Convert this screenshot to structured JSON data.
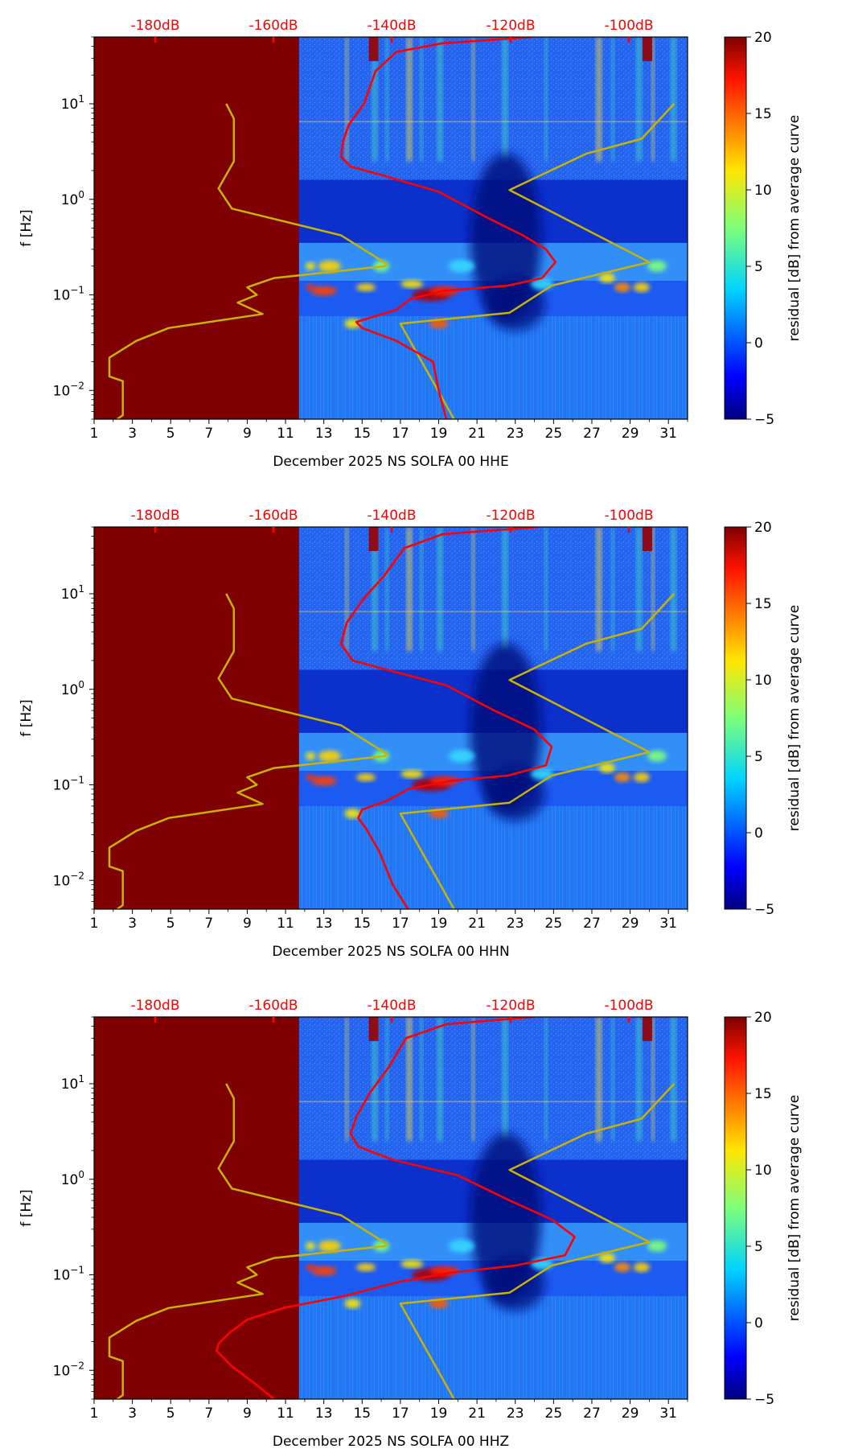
{
  "chart_data": [
    {
      "type": "heatmap",
      "xlabel": "December 2025 NS SOLFA 00 HHE",
      "ylabel": "f [Hz]",
      "colorbar_label": "residual [dB] from average curve",
      "colorbar_ticks": [
        "20",
        "15",
        "10",
        "5",
        "0",
        "−5"
      ],
      "colorbar_range": [
        -5,
        20
      ],
      "x_tick_labels": [
        "1",
        "3",
        "5",
        "7",
        "9",
        "11",
        "13",
        "15",
        "17",
        "19",
        "21",
        "23",
        "25",
        "27",
        "29",
        "31"
      ],
      "y_tick_labels": [
        {
          "base": "10",
          "exp": "1"
        },
        {
          "base": "10",
          "exp": "0"
        },
        {
          "base": "10",
          "exp": "−1"
        },
        {
          "base": "10",
          "exp": "−2"
        }
      ],
      "y_range_hz": [
        0.005,
        50
      ],
      "x_range_days": [
        1,
        32
      ],
      "top_axis_labels": [
        "-180dB",
        "-160dB",
        "-140dB",
        "-120dB",
        "-100dB"
      ],
      "no_data_until_day": 11.7,
      "reference_curve_color": "#c8b400",
      "mean_curve_color": "#ff0000",
      "reference_curves": [
        {
          "points": [
            [
              7.9,
              10
            ],
            [
              8.3,
              7
            ],
            [
              8.3,
              2.5
            ],
            [
              7.5,
              1.3
            ],
            [
              8.2,
              0.8
            ],
            [
              13.9,
              0.42
            ],
            [
              16.3,
              0.21
            ],
            [
              16.2,
              0.2
            ],
            [
              10.4,
              0.15
            ],
            [
              9.0,
              0.12
            ],
            [
              9.5,
              0.1
            ],
            [
              8.5,
              0.083
            ],
            [
              9.8,
              0.063
            ],
            [
              4.9,
              0.045
            ],
            [
              3.2,
              0.033
            ],
            [
              1.8,
              0.022
            ],
            [
              1.8,
              0.014
            ],
            [
              2.5,
              0.0125
            ],
            [
              2.5,
              0.0055
            ],
            [
              2.2,
              0.005
            ]
          ]
        },
        {
          "points": [
            [
              31.3,
              10
            ],
            [
              29.6,
              4.3
            ],
            [
              26.7,
              3.0
            ],
            [
              22.7,
              1.25
            ],
            [
              30.0,
              0.22
            ],
            [
              24.9,
              0.125
            ],
            [
              22.7,
              0.065
            ],
            [
              17.0,
              0.05
            ],
            [
              19.8,
              0.005
            ]
          ]
        }
      ],
      "mean_curve": [
        [
          23.9,
          50
        ],
        [
          19.2,
          43
        ],
        [
          16.8,
          35
        ],
        [
          15.7,
          22
        ],
        [
          15.1,
          10
        ],
        [
          14.3,
          6
        ],
        [
          14.0,
          4
        ],
        [
          13.9,
          2.8
        ],
        [
          14.4,
          2.2
        ],
        [
          16.0,
          1.8
        ],
        [
          19.0,
          1.2
        ],
        [
          21.5,
          0.65
        ],
        [
          23.4,
          0.42
        ],
        [
          24.6,
          0.3
        ],
        [
          25.1,
          0.22
        ],
        [
          24.4,
          0.15
        ],
        [
          22.6,
          0.125
        ],
        [
          19.2,
          0.11
        ],
        [
          17.5,
          0.09
        ],
        [
          16.8,
          0.07
        ],
        [
          14.7,
          0.052
        ],
        [
          15.0,
          0.045
        ],
        [
          16.8,
          0.033
        ],
        [
          18.7,
          0.02
        ],
        [
          19.0,
          0.01
        ],
        [
          19.4,
          0.005
        ]
      ]
    },
    {
      "type": "heatmap",
      "xlabel": "December 2025 NS SOLFA 00 HHN",
      "ylabel": "f [Hz]",
      "colorbar_label": "residual [dB] from average curve",
      "colorbar_ticks": [
        "20",
        "15",
        "10",
        "5",
        "0",
        "−5"
      ],
      "colorbar_range": [
        -5,
        20
      ],
      "x_tick_labels": [
        "1",
        "3",
        "5",
        "7",
        "9",
        "11",
        "13",
        "15",
        "17",
        "19",
        "21",
        "23",
        "25",
        "27",
        "29",
        "31"
      ],
      "y_tick_labels": [
        {
          "base": "10",
          "exp": "1"
        },
        {
          "base": "10",
          "exp": "0"
        },
        {
          "base": "10",
          "exp": "−1"
        },
        {
          "base": "10",
          "exp": "−2"
        }
      ],
      "y_range_hz": [
        0.005,
        50
      ],
      "x_range_days": [
        1,
        32
      ],
      "top_axis_labels": [
        "-180dB",
        "-160dB",
        "-140dB",
        "-120dB",
        "-100dB"
      ],
      "no_data_until_day": 11.7,
      "reference_curve_color": "#c8b400",
      "mean_curve_color": "#ff0000",
      "reference_curves": [
        {
          "points": [
            [
              7.9,
              10
            ],
            [
              8.3,
              7
            ],
            [
              8.3,
              2.5
            ],
            [
              7.5,
              1.3
            ],
            [
              8.2,
              0.8
            ],
            [
              13.9,
              0.42
            ],
            [
              16.3,
              0.21
            ],
            [
              16.2,
              0.2
            ],
            [
              10.4,
              0.15
            ],
            [
              9.0,
              0.12
            ],
            [
              9.5,
              0.1
            ],
            [
              8.5,
              0.083
            ],
            [
              9.8,
              0.063
            ],
            [
              4.9,
              0.045
            ],
            [
              3.2,
              0.033
            ],
            [
              1.8,
              0.022
            ],
            [
              1.8,
              0.014
            ],
            [
              2.5,
              0.0125
            ],
            [
              2.5,
              0.0055
            ],
            [
              2.2,
              0.005
            ]
          ]
        },
        {
          "points": [
            [
              31.3,
              10
            ],
            [
              29.6,
              4.3
            ],
            [
              26.7,
              3.0
            ],
            [
              22.7,
              1.25
            ],
            [
              30.0,
              0.22
            ],
            [
              24.9,
              0.125
            ],
            [
              22.7,
              0.065
            ],
            [
              17.0,
              0.05
            ],
            [
              19.8,
              0.005
            ]
          ]
        }
      ],
      "mean_curve": [
        [
          24.2,
          50
        ],
        [
          19.2,
          42
        ],
        [
          17.2,
          30
        ],
        [
          16.1,
          15
        ],
        [
          15.1,
          9
        ],
        [
          14.2,
          5
        ],
        [
          13.9,
          3.0
        ],
        [
          14.5,
          2.0
        ],
        [
          16.3,
          1.6
        ],
        [
          19.4,
          1.1
        ],
        [
          21.9,
          0.6
        ],
        [
          24.0,
          0.38
        ],
        [
          24.9,
          0.25
        ],
        [
          24.6,
          0.16
        ],
        [
          22.6,
          0.125
        ],
        [
          19.6,
          0.11
        ],
        [
          17.4,
          0.09
        ],
        [
          16.3,
          0.068
        ],
        [
          15.0,
          0.055
        ],
        [
          14.8,
          0.045
        ],
        [
          15.2,
          0.035
        ],
        [
          15.9,
          0.02
        ],
        [
          16.6,
          0.009
        ],
        [
          17.4,
          0.005
        ]
      ]
    },
    {
      "type": "heatmap",
      "xlabel": "December 2025 NS SOLFA 00 HHZ",
      "ylabel": "f [Hz]",
      "colorbar_label": "residual [dB] from average curve",
      "colorbar_ticks": [
        "20",
        "15",
        "10",
        "5",
        "0",
        "−5"
      ],
      "colorbar_range": [
        -5,
        20
      ],
      "x_tick_labels": [
        "1",
        "3",
        "5",
        "7",
        "9",
        "11",
        "13",
        "15",
        "17",
        "19",
        "21",
        "23",
        "25",
        "27",
        "29",
        "31"
      ],
      "y_tick_labels": [
        {
          "base": "10",
          "exp": "1"
        },
        {
          "base": "10",
          "exp": "0"
        },
        {
          "base": "10",
          "exp": "−1"
        },
        {
          "base": "10",
          "exp": "−2"
        }
      ],
      "y_range_hz": [
        0.005,
        50
      ],
      "x_range_days": [
        1,
        32
      ],
      "top_axis_labels": [
        "-180dB",
        "-160dB",
        "-140dB",
        "-120dB",
        "-100dB"
      ],
      "no_data_until_day": 11.7,
      "reference_curve_color": "#c8b400",
      "mean_curve_color": "#ff0000",
      "reference_curves": [
        {
          "points": [
            [
              7.9,
              10
            ],
            [
              8.3,
              7
            ],
            [
              8.3,
              2.5
            ],
            [
              7.5,
              1.3
            ],
            [
              8.2,
              0.8
            ],
            [
              13.9,
              0.42
            ],
            [
              16.3,
              0.21
            ],
            [
              16.2,
              0.2
            ],
            [
              10.4,
              0.15
            ],
            [
              9.0,
              0.12
            ],
            [
              9.5,
              0.1
            ],
            [
              8.5,
              0.083
            ],
            [
              9.8,
              0.063
            ],
            [
              4.9,
              0.045
            ],
            [
              3.2,
              0.033
            ],
            [
              1.8,
              0.022
            ],
            [
              1.8,
              0.014
            ],
            [
              2.5,
              0.0125
            ],
            [
              2.5,
              0.0055
            ],
            [
              2.2,
              0.005
            ]
          ]
        },
        {
          "points": [
            [
              31.3,
              10
            ],
            [
              29.6,
              4.3
            ],
            [
              26.7,
              3.0
            ],
            [
              22.7,
              1.25
            ],
            [
              30.0,
              0.22
            ],
            [
              24.9,
              0.125
            ],
            [
              22.7,
              0.065
            ],
            [
              17.0,
              0.05
            ],
            [
              19.8,
              0.005
            ]
          ]
        }
      ],
      "mean_curve": [
        [
          24.0,
          50
        ],
        [
          19.4,
          42
        ],
        [
          17.3,
          30
        ],
        [
          16.4,
          15
        ],
        [
          15.4,
          8
        ],
        [
          14.7,
          4.5
        ],
        [
          14.4,
          3.0
        ],
        [
          14.8,
          2.2
        ],
        [
          16.6,
          1.6
        ],
        [
          20.0,
          1.1
        ],
        [
          22.7,
          0.6
        ],
        [
          24.9,
          0.38
        ],
        [
          26.1,
          0.25
        ],
        [
          25.6,
          0.16
        ],
        [
          23.0,
          0.125
        ],
        [
          19.6,
          0.105
        ],
        [
          17.0,
          0.085
        ],
        [
          14.1,
          0.06
        ],
        [
          10.9,
          0.045
        ],
        [
          9.0,
          0.034
        ],
        [
          8.1,
          0.025
        ],
        [
          7.5,
          0.019
        ],
        [
          7.4,
          0.016
        ],
        [
          8.2,
          0.011
        ],
        [
          9.5,
          0.007
        ],
        [
          10.4,
          0.005
        ]
      ]
    }
  ]
}
